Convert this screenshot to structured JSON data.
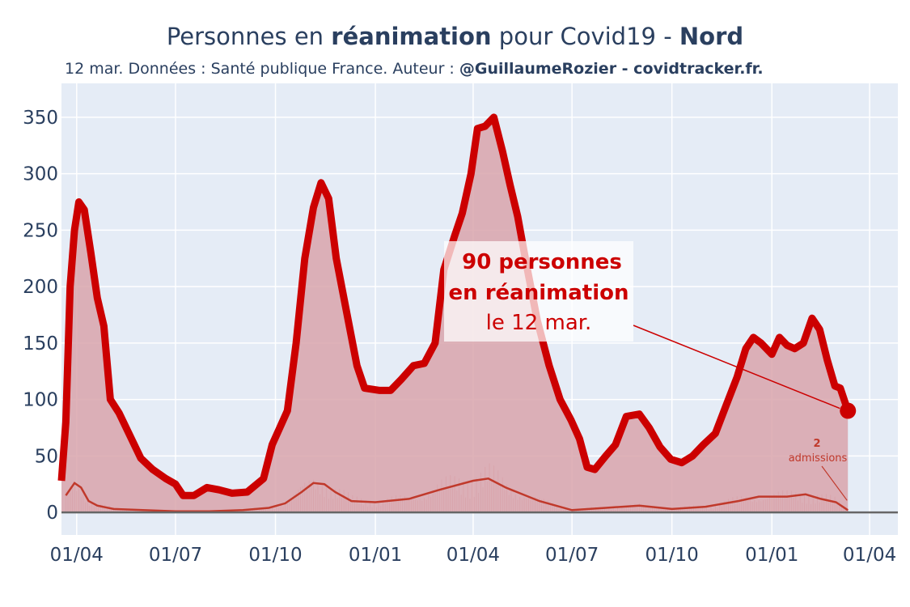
{
  "title": {
    "part1": "Personnes en ",
    "part2": "réanimation",
    "part3": " pour Covid19 - ",
    "part4": "Nord"
  },
  "subtitle": {
    "text": "12 mar. Données : Santé publique France. Auteur : ",
    "author": "@GuillaumeRozier - covidtracker.fr."
  },
  "annotation": {
    "line1": "90 personnes",
    "line2": "en réanimation",
    "line3": "le 12 mar."
  },
  "admissions_label": {
    "value": "2",
    "text": "admissions"
  },
  "colors": {
    "plot_bg": "#e5ecf6",
    "main_line": "#cc0000",
    "area_fill": "#d9a4ab",
    "admissions_line": "#c0392b",
    "text": "#2a3f5f"
  },
  "chart_data": {
    "type": "area",
    "title": "Personnes en réanimation pour Covid19 - Nord",
    "ylim": [
      -20,
      380
    ],
    "y_ticks": [
      0,
      50,
      100,
      150,
      200,
      250,
      300,
      350
    ],
    "x_range": [
      "2020-03-18",
      "2022-04-27"
    ],
    "x_ticks": [
      {
        "date": "2020-04-01",
        "label": "01/04"
      },
      {
        "date": "2020-07-01",
        "label": "01/07"
      },
      {
        "date": "2020-10-01",
        "label": "01/10"
      },
      {
        "date": "2021-01-01",
        "label": "01/01"
      },
      {
        "date": "2021-04-01",
        "label": "01/04"
      },
      {
        "date": "2021-07-01",
        "label": "01/07"
      },
      {
        "date": "2021-10-01",
        "label": "01/10"
      },
      {
        "date": "2022-01-01",
        "label": "01/01"
      },
      {
        "date": "2022-04-01",
        "label": "01/04"
      }
    ],
    "grid": true,
    "series": [
      {
        "name": "réanimation",
        "points": [
          [
            "2020-03-18",
            28
          ],
          [
            "2020-03-22",
            80
          ],
          [
            "2020-03-26",
            200
          ],
          [
            "2020-03-30",
            250
          ],
          [
            "2020-04-03",
            275
          ],
          [
            "2020-04-08",
            268
          ],
          [
            "2020-04-14",
            230
          ],
          [
            "2020-04-20",
            190
          ],
          [
            "2020-04-26",
            165
          ],
          [
            "2020-05-02",
            100
          ],
          [
            "2020-05-10",
            88
          ],
          [
            "2020-05-20",
            68
          ],
          [
            "2020-05-30",
            48
          ],
          [
            "2020-06-10",
            38
          ],
          [
            "2020-06-22",
            30
          ],
          [
            "2020-07-01",
            25
          ],
          [
            "2020-07-08",
            15
          ],
          [
            "2020-07-18",
            15
          ],
          [
            "2020-07-30",
            22
          ],
          [
            "2020-08-10",
            20
          ],
          [
            "2020-08-22",
            17
          ],
          [
            "2020-09-05",
            18
          ],
          [
            "2020-09-20",
            30
          ],
          [
            "2020-09-28",
            60
          ],
          [
            "2020-10-05",
            75
          ],
          [
            "2020-10-12",
            90
          ],
          [
            "2020-10-20",
            150
          ],
          [
            "2020-10-28",
            225
          ],
          [
            "2020-11-05",
            270
          ],
          [
            "2020-11-12",
            292
          ],
          [
            "2020-11-19",
            278
          ],
          [
            "2020-11-26",
            225
          ],
          [
            "2020-12-05",
            180
          ],
          [
            "2020-12-15",
            130
          ],
          [
            "2020-12-22",
            110
          ],
          [
            "2021-01-05",
            108
          ],
          [
            "2021-01-15",
            108
          ],
          [
            "2021-01-25",
            118
          ],
          [
            "2021-02-05",
            130
          ],
          [
            "2021-02-15",
            132
          ],
          [
            "2021-02-25",
            150
          ],
          [
            "2021-03-05",
            215
          ],
          [
            "2021-03-15",
            245
          ],
          [
            "2021-03-22",
            265
          ],
          [
            "2021-03-30",
            300
          ],
          [
            "2021-04-05",
            340
          ],
          [
            "2021-04-12",
            342
          ],
          [
            "2021-04-20",
            350
          ],
          [
            "2021-04-28",
            320
          ],
          [
            "2021-05-05",
            290
          ],
          [
            "2021-05-12",
            262
          ],
          [
            "2021-05-20",
            220
          ],
          [
            "2021-05-30",
            170
          ],
          [
            "2021-06-10",
            130
          ],
          [
            "2021-06-20",
            100
          ],
          [
            "2021-06-30",
            82
          ],
          [
            "2021-07-08",
            65
          ],
          [
            "2021-07-15",
            40
          ],
          [
            "2021-07-22",
            38
          ],
          [
            "2021-08-01",
            50
          ],
          [
            "2021-08-10",
            60
          ],
          [
            "2021-08-20",
            85
          ],
          [
            "2021-09-01",
            87
          ],
          [
            "2021-09-10",
            75
          ],
          [
            "2021-09-20",
            58
          ],
          [
            "2021-09-30",
            47
          ],
          [
            "2021-10-10",
            44
          ],
          [
            "2021-10-20",
            50
          ],
          [
            "2021-10-30",
            60
          ],
          [
            "2021-11-10",
            70
          ],
          [
            "2021-11-20",
            95
          ],
          [
            "2021-11-30",
            120
          ],
          [
            "2021-12-08",
            145
          ],
          [
            "2021-12-15",
            155
          ],
          [
            "2021-12-22",
            150
          ],
          [
            "2022-01-01",
            140
          ],
          [
            "2022-01-08",
            155
          ],
          [
            "2022-01-15",
            148
          ],
          [
            "2022-01-22",
            145
          ],
          [
            "2022-01-30",
            150
          ],
          [
            "2022-02-07",
            172
          ],
          [
            "2022-02-14",
            162
          ],
          [
            "2022-02-21",
            135
          ],
          [
            "2022-02-28",
            112
          ],
          [
            "2022-03-05",
            110
          ],
          [
            "2022-03-12",
            90
          ]
        ]
      },
      {
        "name": "admissions",
        "points": [
          [
            "2020-03-22",
            15
          ],
          [
            "2020-03-30",
            26
          ],
          [
            "2020-04-05",
            22
          ],
          [
            "2020-04-12",
            10
          ],
          [
            "2020-04-20",
            6
          ],
          [
            "2020-05-05",
            3
          ],
          [
            "2020-06-01",
            2
          ],
          [
            "2020-07-01",
            1
          ],
          [
            "2020-08-01",
            1
          ],
          [
            "2020-09-01",
            2
          ],
          [
            "2020-09-25",
            4
          ],
          [
            "2020-10-10",
            8
          ],
          [
            "2020-10-25",
            18
          ],
          [
            "2020-11-05",
            26
          ],
          [
            "2020-11-15",
            25
          ],
          [
            "2020-11-25",
            18
          ],
          [
            "2020-12-10",
            10
          ],
          [
            "2021-01-01",
            9
          ],
          [
            "2021-02-01",
            12
          ],
          [
            "2021-03-01",
            20
          ],
          [
            "2021-04-01",
            28
          ],
          [
            "2021-04-15",
            30
          ],
          [
            "2021-05-01",
            22
          ],
          [
            "2021-06-01",
            10
          ],
          [
            "2021-07-01",
            2
          ],
          [
            "2021-08-01",
            4
          ],
          [
            "2021-09-01",
            6
          ],
          [
            "2021-10-01",
            3
          ],
          [
            "2021-11-01",
            5
          ],
          [
            "2021-12-01",
            10
          ],
          [
            "2021-12-20",
            14
          ],
          [
            "2022-01-15",
            14
          ],
          [
            "2022-02-01",
            16
          ],
          [
            "2022-02-15",
            12
          ],
          [
            "2022-03-01",
            9
          ],
          [
            "2022-03-12",
            2
          ]
        ]
      }
    ]
  }
}
